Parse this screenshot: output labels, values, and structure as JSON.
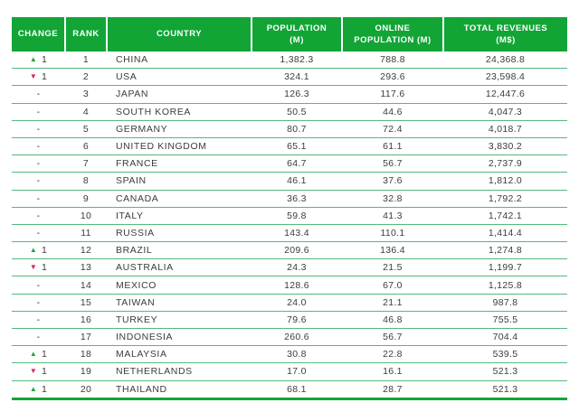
{
  "theme": {
    "header_green": "#12A536",
    "separator_green": "#55B97D",
    "up_arrow_green": "#1FA23C",
    "down_arrow_red": "#D2294E",
    "body_text": "#3C3C3C",
    "header_text": "#FFFFFF"
  },
  "icons": {
    "up_triangle": "▲",
    "down_triangle": "▼"
  },
  "header": {
    "labels": [
      "CHANGE",
      "RANK",
      "COUNTRY",
      "POPULATION\n(M)",
      "ONLINE\nPOPULATION (M)",
      "TOTAL REVENUES\n(M$)"
    ]
  },
  "chart_data": {
    "type": "table",
    "columns": [
      "CHANGE",
      "RANK",
      "COUNTRY",
      "POPULATION (M)",
      "ONLINE POPULATION (M)",
      "TOTAL REVENUES (M$)"
    ],
    "rows": [
      {
        "change_direction": "up",
        "change": "1",
        "rank": "1",
        "country": "CHINA",
        "population": "1,382.3",
        "online_population": "788.8",
        "total_revenues": "24,368.8"
      },
      {
        "change_direction": "down",
        "change": "1",
        "rank": "2",
        "country": "USA",
        "population": "324.1",
        "online_population": "293.6",
        "total_revenues": "23,598.4"
      },
      {
        "change_direction": "none",
        "change": "-",
        "rank": "3",
        "country": "JAPAN",
        "population": "126.3",
        "online_population": "117.6",
        "total_revenues": "12,447.6"
      },
      {
        "change_direction": "none",
        "change": "-",
        "rank": "4",
        "country": "SOUTH KOREA",
        "population": "50.5",
        "online_population": "44.6",
        "total_revenues": "4,047.3"
      },
      {
        "change_direction": "none",
        "change": "-",
        "rank": "5",
        "country": "GERMANY",
        "population": "80.7",
        "online_population": "72.4",
        "total_revenues": "4,018.7"
      },
      {
        "change_direction": "none",
        "change": "-",
        "rank": "6",
        "country": "UNITED KINGDOM",
        "population": "65.1",
        "online_population": "61.1",
        "total_revenues": "3,830.2"
      },
      {
        "change_direction": "none",
        "change": "-",
        "rank": "7",
        "country": "FRANCE",
        "population": "64.7",
        "online_population": "56.7",
        "total_revenues": "2,737.9"
      },
      {
        "change_direction": "none",
        "change": "-",
        "rank": "8",
        "country": "SPAIN",
        "population": "46.1",
        "online_population": "37.6",
        "total_revenues": "1,812.0"
      },
      {
        "change_direction": "none",
        "change": "-",
        "rank": "9",
        "country": "CANADA",
        "population": "36.3",
        "online_population": "32.8",
        "total_revenues": "1,792.2"
      },
      {
        "change_direction": "none",
        "change": "-",
        "rank": "10",
        "country": "ITALY",
        "population": "59.8",
        "online_population": "41.3",
        "total_revenues": "1,742.1"
      },
      {
        "change_direction": "none",
        "change": "-",
        "rank": "11",
        "country": "RUSSIA",
        "population": "143.4",
        "online_population": "110.1",
        "total_revenues": "1,414.4"
      },
      {
        "change_direction": "up",
        "change": "1",
        "rank": "12",
        "country": "BRAZIL",
        "population": "209.6",
        "online_population": "136.4",
        "total_revenues": "1,274.8"
      },
      {
        "change_direction": "down",
        "change": "1",
        "rank": "13",
        "country": "AUSTRALIA",
        "population": "24.3",
        "online_population": "21.5",
        "total_revenues": "1,199.7"
      },
      {
        "change_direction": "none",
        "change": "-",
        "rank": "14",
        "country": "MEXICO",
        "population": "128.6",
        "online_population": "67.0",
        "total_revenues": "1,125.8"
      },
      {
        "change_direction": "none",
        "change": "-",
        "rank": "15",
        "country": "TAIWAN",
        "population": "24.0",
        "online_population": "21.1",
        "total_revenues": "987.8"
      },
      {
        "change_direction": "none",
        "change": "-",
        "rank": "16",
        "country": "TURKEY",
        "population": "79.6",
        "online_population": "46.8",
        "total_revenues": "755.5"
      },
      {
        "change_direction": "none",
        "change": "-",
        "rank": "17",
        "country": "INDONESIA",
        "population": "260.6",
        "online_population": "56.7",
        "total_revenues": "704.4"
      },
      {
        "change_direction": "up",
        "change": "1",
        "rank": "18",
        "country": "MALAYSIA",
        "population": "30.8",
        "online_population": "22.8",
        "total_revenues": "539.5"
      },
      {
        "change_direction": "down",
        "change": "1",
        "rank": "19",
        "country": "NETHERLANDS",
        "population": "17.0",
        "online_population": "16.1",
        "total_revenues": "521.3"
      },
      {
        "change_direction": "up",
        "change": "1",
        "rank": "20",
        "country": "THAILAND",
        "population": "68.1",
        "online_population": "28.7",
        "total_revenues": "521.3"
      }
    ]
  }
}
